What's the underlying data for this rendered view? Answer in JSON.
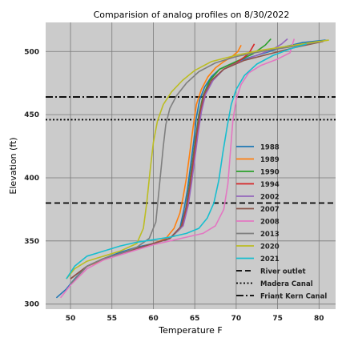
{
  "chart_data": {
    "type": "line",
    "title": "Comparision of analog profiles on 8/30/2022",
    "xlabel": "Temperature F",
    "ylabel": "Elevation (ft)",
    "xlim": [
      47,
      82
    ],
    "ylim": [
      296,
      523
    ],
    "xticks": [
      50,
      55,
      60,
      65,
      70,
      75,
      80
    ],
    "yticks": [
      300,
      350,
      400,
      450,
      500
    ],
    "grid": true,
    "legend_position": "lower-right",
    "series": [
      {
        "name": "1988",
        "color": "#1f77b4",
        "x": [
          48.3,
          49.5,
          50.5,
          52,
          54,
          56,
          58,
          60,
          62,
          63.2,
          63.7,
          64.1,
          64.5,
          64.9,
          65.2,
          65.6,
          66.2,
          67,
          68,
          70,
          72,
          74,
          76,
          78,
          80.8
        ],
        "y": [
          305,
          312,
          320,
          330,
          336,
          341,
          345,
          348,
          352,
          360,
          375,
          390,
          410,
          430,
          448,
          462,
          472,
          480,
          486,
          492,
          496,
          500,
          504,
          507,
          509
        ]
      },
      {
        "name": "1989",
        "color": "#ff7f0e",
        "x": [
          50,
          52,
          54,
          56,
          58,
          60,
          61.5,
          62.5,
          63.2,
          63.6,
          64.0,
          64.4,
          64.8,
          65.2,
          65.8,
          66.6,
          67.5,
          68.5,
          69.5,
          70.2,
          70.6
        ],
        "y": [
          320,
          330,
          335,
          340,
          344,
          348,
          352,
          360,
          372,
          385,
          400,
          420,
          440,
          458,
          470,
          480,
          487,
          492,
          496,
          500,
          505
        ]
      },
      {
        "name": "1990",
        "color": "#2ca02c",
        "x": [
          50,
          52,
          54,
          56,
          58,
          60,
          62,
          63.3,
          63.9,
          64.3,
          64.7,
          65.1,
          65.5,
          66.0,
          66.8,
          68,
          70,
          72,
          73.5,
          74.2
        ],
        "y": [
          320,
          330,
          336,
          340,
          344,
          348,
          352,
          360,
          375,
          392,
          412,
          432,
          450,
          465,
          477,
          486,
          492,
          498,
          505,
          510
        ]
      },
      {
        "name": "1994",
        "color": "#d62728",
        "x": [
          50,
          52,
          54,
          56,
          58,
          60,
          62,
          63.5,
          64.1,
          64.5,
          64.9,
          65.3,
          65.7,
          66.2,
          67,
          68.5,
          70,
          71.5,
          72.2
        ],
        "y": [
          320,
          330,
          336,
          340,
          344,
          348,
          352,
          362,
          378,
          395,
          415,
          435,
          452,
          466,
          477,
          486,
          491,
          498,
          506
        ]
      },
      {
        "name": "2002",
        "color": "#9467bd",
        "x": [
          50,
          52,
          54,
          56,
          58,
          60,
          62,
          63.6,
          64.2,
          64.6,
          65.0,
          65.4,
          65.8,
          66.3,
          67.2,
          68.5,
          70.5,
          72.5,
          74.5,
          75.5,
          76.2
        ],
        "y": [
          320,
          330,
          336,
          340,
          344,
          348,
          352,
          362,
          378,
          395,
          415,
          435,
          452,
          466,
          477,
          486,
          492,
          497,
          502,
          506,
          510
        ]
      },
      {
        "name": "2007",
        "color": "#8c564b",
        "x": [
          50,
          52,
          54,
          56,
          58,
          60,
          62,
          63.4,
          64.0,
          64.4,
          64.8,
          65.2,
          65.6,
          66.1,
          67,
          68.5,
          71,
          74,
          77,
          80.5
        ],
        "y": [
          320,
          330,
          336,
          340,
          344,
          348,
          352,
          362,
          378,
          395,
          415,
          435,
          452,
          466,
          477,
          486,
          493,
          498,
          503,
          508
        ]
      },
      {
        "name": "2008",
        "color": "#e377c2",
        "x": [
          48.8,
          50,
          52,
          54,
          56,
          58,
          60,
          62,
          64,
          66,
          67.5,
          68.5,
          69.0,
          69.3,
          69.6,
          70.0,
          70.6,
          71.5,
          73,
          75,
          76.5,
          77
        ],
        "y": [
          305,
          315,
          328,
          335,
          339,
          343,
          347,
          350,
          353,
          356,
          362,
          375,
          395,
          420,
          445,
          462,
          474,
          483,
          489,
          494,
          499,
          510
        ]
      },
      {
        "name": "2013",
        "color": "#7f7f7f",
        "x": [
          50,
          52,
          54,
          56,
          58,
          59.5,
          60.3,
          60.6,
          60.9,
          61.2,
          61.5,
          62.0,
          62.8,
          64,
          65.5,
          67.5,
          70,
          73,
          76,
          79.5,
          81
        ],
        "y": [
          316,
          330,
          336,
          340,
          345,
          352,
          365,
          385,
          405,
          425,
          442,
          455,
          465,
          475,
          484,
          491,
          496,
          500,
          503,
          507,
          509
        ]
      },
      {
        "name": "2020",
        "color": "#bcbd22",
        "x": [
          49.5,
          50.5,
          52,
          54,
          56,
          58,
          58.8,
          59.2,
          59.6,
          60.0,
          60.5,
          61.2,
          62.2,
          63.5,
          65,
          67,
          70,
          73,
          76,
          79,
          81.2
        ],
        "y": [
          320,
          328,
          334,
          338,
          342,
          348,
          360,
          380,
          405,
          428,
          445,
          458,
          468,
          477,
          485,
          492,
          497,
          501,
          504,
          507,
          509
        ]
      },
      {
        "name": "2021",
        "color": "#17becf",
        "x": [
          49.5,
          50.5,
          52,
          54,
          56,
          58,
          60,
          62,
          64,
          65.5,
          66.5,
          67.3,
          67.9,
          68.4,
          68.9,
          69.4,
          70.0,
          71,
          72.5,
          74.5,
          76.5,
          78.5
        ],
        "y": [
          320,
          330,
          338,
          342,
          346,
          349,
          351,
          353,
          356,
          360,
          368,
          380,
          398,
          420,
          440,
          458,
          470,
          481,
          490,
          497,
          502,
          506
        ]
      }
    ],
    "reference_lines": [
      {
        "name": "River outlet",
        "y": 380,
        "style": "dashed"
      },
      {
        "name": "Madera Canal",
        "y": 446,
        "style": "dotted"
      },
      {
        "name": "Friant Kern Canal",
        "y": 464,
        "style": "dashdot"
      }
    ]
  }
}
